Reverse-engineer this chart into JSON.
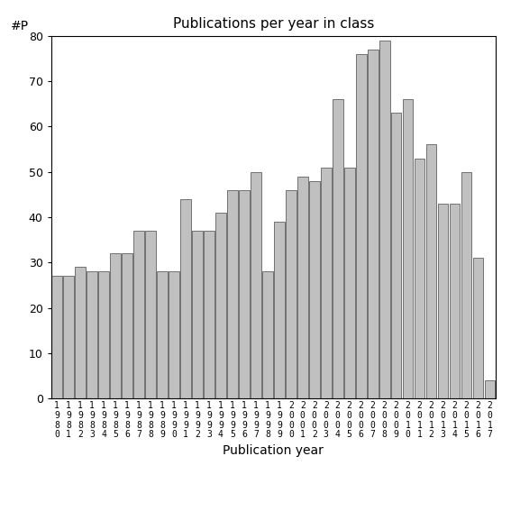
{
  "title": "Publications per year in class",
  "xlabel": "Publication year",
  "ylabel": "#P",
  "start_year": 1980,
  "end_year": 2017,
  "values": [
    27,
    27,
    29,
    28,
    28,
    32,
    32,
    37,
    37,
    28,
    28,
    44,
    37,
    37,
    41,
    46,
    46,
    50,
    28,
    39,
    46,
    49,
    48,
    51,
    66,
    51,
    76,
    77,
    79,
    63,
    66,
    53,
    56,
    43,
    43,
    50,
    31,
    4
  ],
  "bar_color": "#c0c0c0",
  "bar_edge_color": "#606060",
  "background_color": "#ffffff",
  "ylim": [
    0,
    80
  ],
  "yticks": [
    0,
    10,
    20,
    30,
    40,
    50,
    60,
    70,
    80
  ]
}
